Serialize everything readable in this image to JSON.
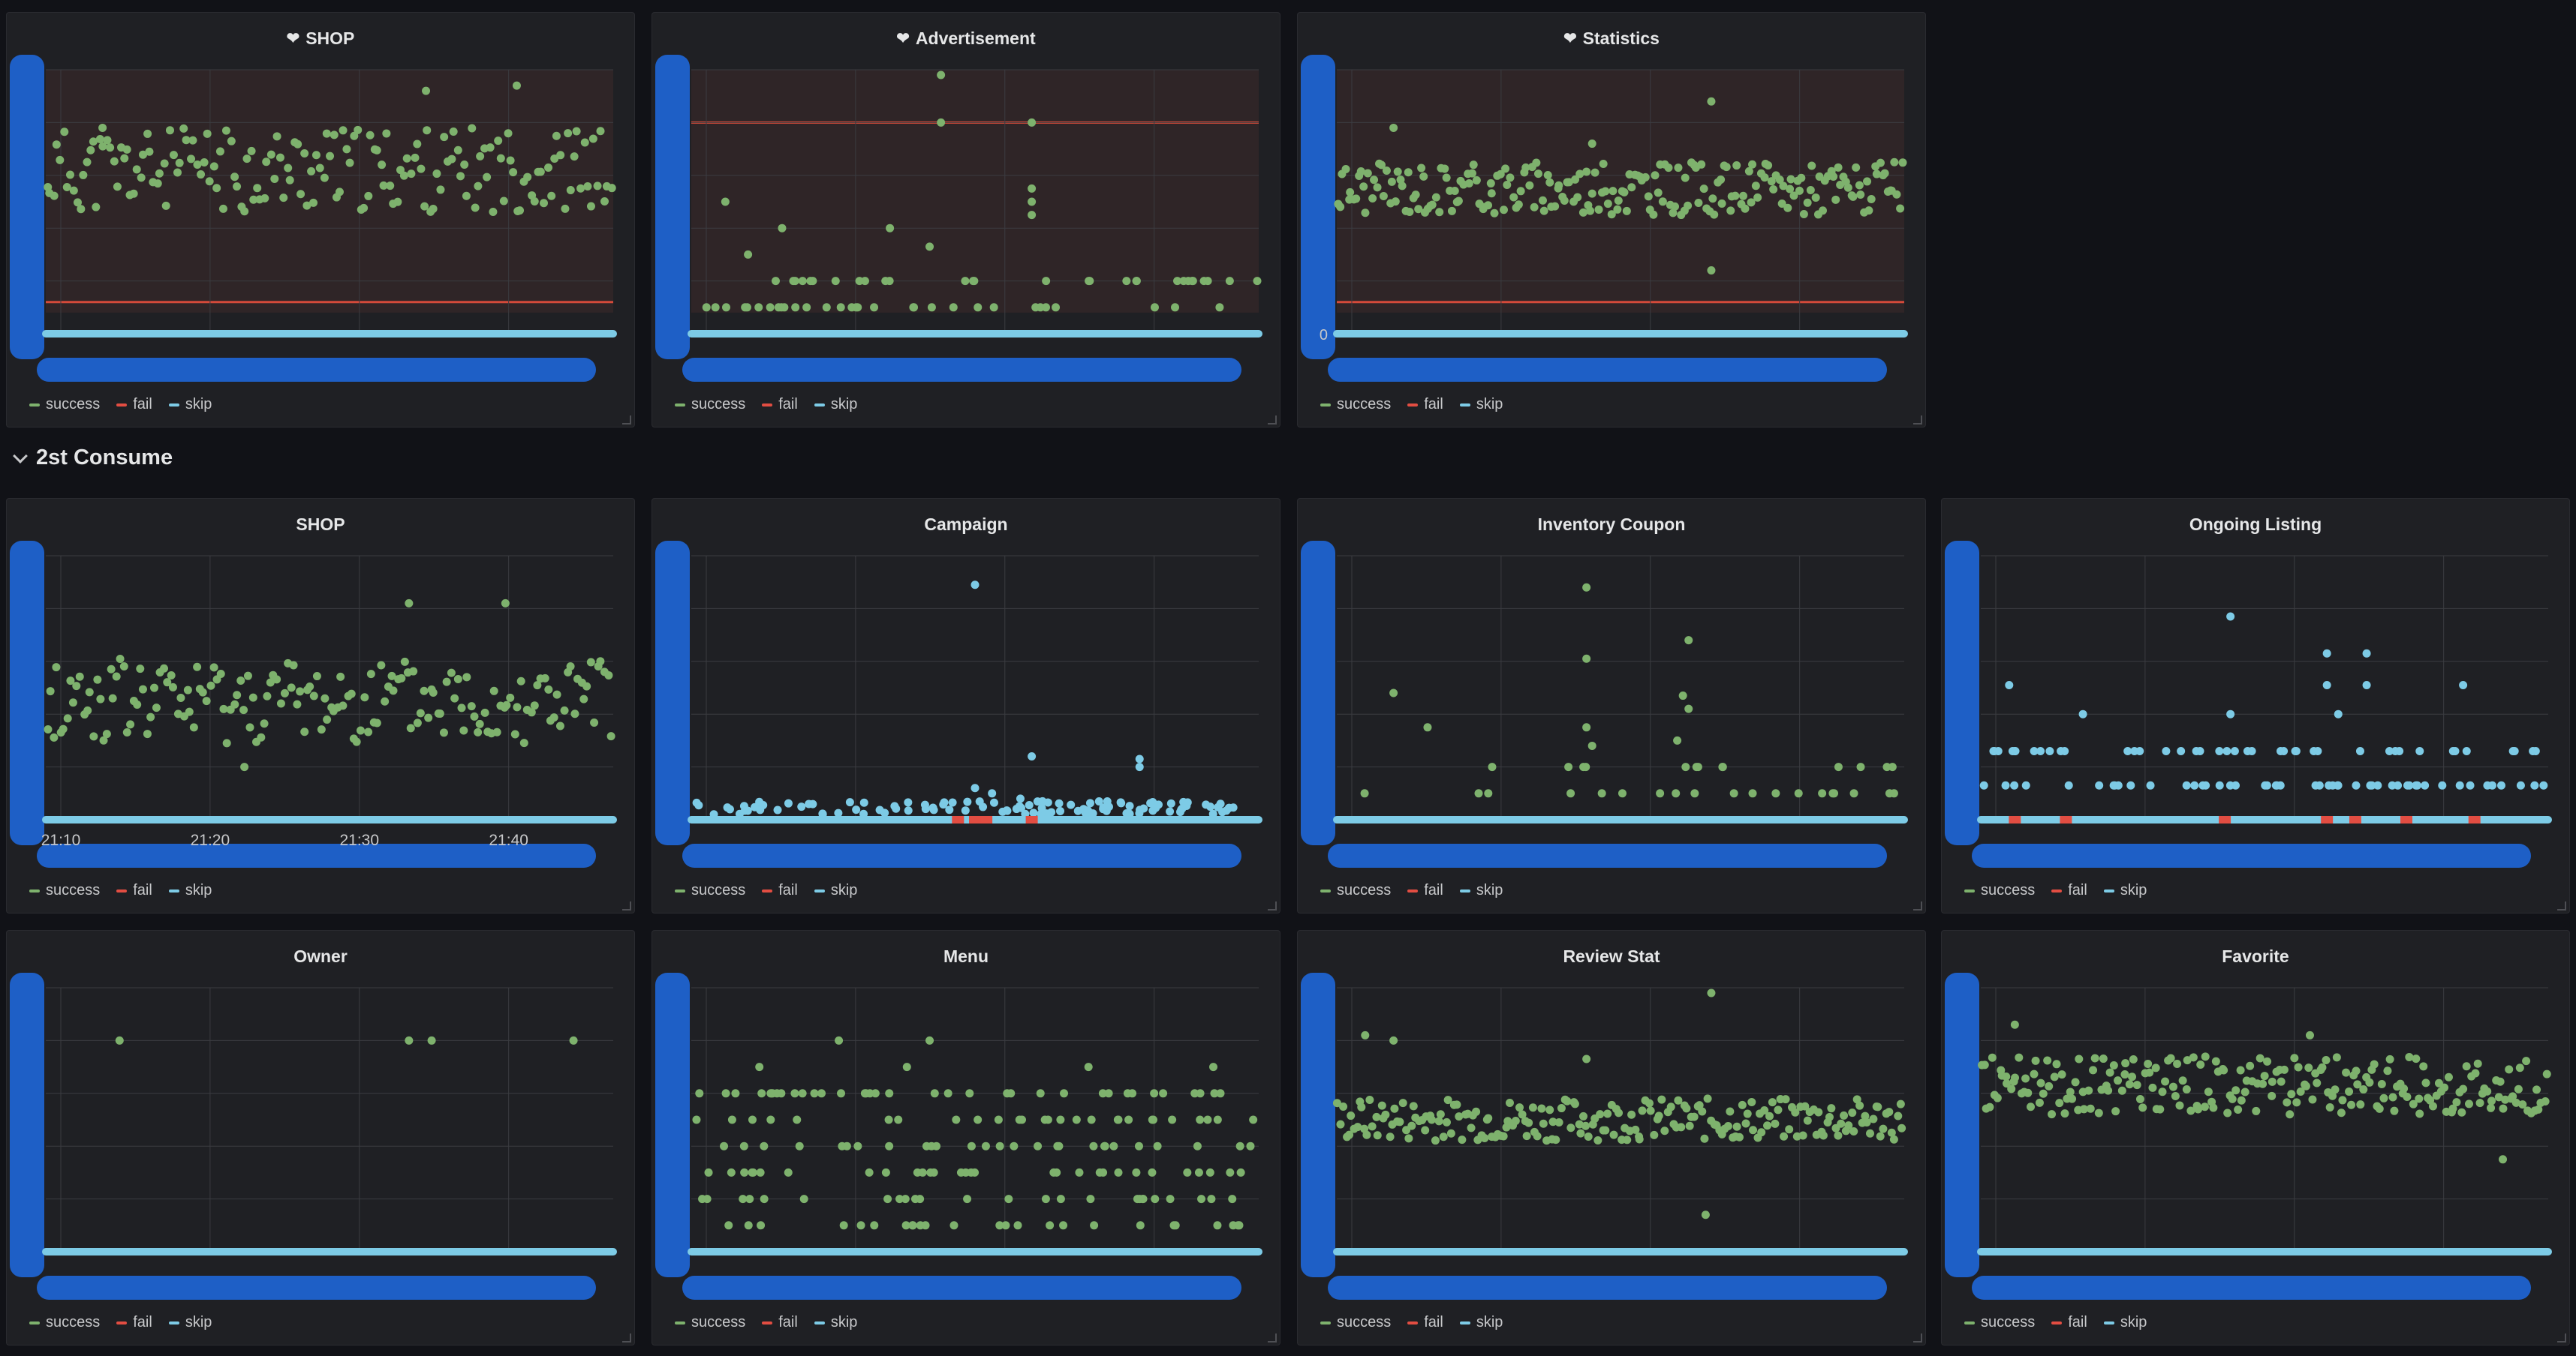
{
  "colors": {
    "success": "#7eb26d",
    "fail": "#e24d42",
    "skip": "#7dcbe6",
    "threshold_band": "#3a2a2a",
    "threshold_line": "#d44a3a",
    "grid": "#3b3c41",
    "drag_handle": "#1e5fc6"
  },
  "legend_labels": [
    "success",
    "fail",
    "skip"
  ],
  "section": {
    "title": "2st Consume"
  },
  "panels": [
    {
      "id": "p1",
      "title": "SHOP",
      "heart": true,
      "threshold": true,
      "x_ticks": [],
      "y_zero": "",
      "chart_data": {
        "type": "scatter",
        "series": [
          {
            "name": "success",
            "pattern": "band",
            "center": 0.62,
            "spread": 0.16,
            "n": 170,
            "seed": 11,
            "extras": [
              [
                0.67,
                0.92
              ],
              [
                0.83,
                0.94
              ],
              [
                0.1,
                0.78
              ]
            ]
          },
          {
            "name": "skip",
            "pattern": "baseline",
            "n": 0,
            "seed": 1
          }
        ]
      }
    },
    {
      "id": "p2",
      "title": "Advertisement",
      "heart": true,
      "threshold": true,
      "x_ticks": [],
      "y_zero": "",
      "chart_data": {
        "type": "scatter",
        "series": [
          {
            "name": "success",
            "pattern": "low",
            "n": 60,
            "seed": 21,
            "extras": [
              [
                0.44,
                0.98
              ],
              [
                0.44,
                0.8
              ],
              [
                0.6,
                0.8
              ],
              [
                0.06,
                0.5
              ],
              [
                0.16,
                0.4
              ],
              [
                0.35,
                0.4
              ],
              [
                0.6,
                0.55
              ],
              [
                0.6,
                0.5
              ],
              [
                0.6,
                0.45
              ],
              [
                0.1,
                0.3
              ],
              [
                0.42,
                0.33
              ]
            ]
          },
          {
            "name": "skip",
            "pattern": "baseline",
            "n": 0,
            "seed": 2
          }
        ]
      }
    },
    {
      "id": "p3",
      "title": "Statistics",
      "heart": true,
      "threshold": true,
      "x_ticks": [],
      "y_zero": "0",
      "chart_data": {
        "type": "scatter",
        "series": [
          {
            "name": "success",
            "pattern": "band",
            "center": 0.55,
            "spread": 0.1,
            "n": 220,
            "seed": 31,
            "extras": [
              [
                0.66,
                0.88
              ],
              [
                0.66,
                0.24
              ],
              [
                0.1,
                0.78
              ],
              [
                0.45,
                0.72
              ]
            ]
          },
          {
            "name": "skip",
            "pattern": "baseline",
            "n": 0,
            "seed": 3
          }
        ]
      }
    },
    {
      "id": "p4",
      "title": "SHOP",
      "heart": false,
      "threshold": false,
      "x_ticks": [
        "21:10",
        "21:20",
        "21:30",
        "21:40"
      ],
      "y_zero": "",
      "chart_data": {
        "type": "scatter",
        "series": [
          {
            "name": "success",
            "pattern": "band",
            "center": 0.45,
            "spread": 0.16,
            "n": 170,
            "seed": 41,
            "extras": [
              [
                0.64,
                0.82
              ],
              [
                0.81,
                0.82
              ],
              [
                0.35,
                0.2
              ]
            ]
          },
          {
            "name": "skip",
            "pattern": "baseline",
            "n": 0,
            "seed": 4
          }
        ]
      }
    },
    {
      "id": "p5",
      "title": "Campaign",
      "heart": false,
      "threshold": false,
      "x_ticks": [],
      "y_zero": "",
      "chart_data": {
        "type": "scatter",
        "series": [
          {
            "name": "skip",
            "pattern": "noise",
            "n": 110,
            "seed": 51,
            "extras": [
              [
                0.5,
                0.89
              ],
              [
                0.6,
                0.24
              ],
              [
                0.79,
                0.23
              ],
              [
                0.79,
                0.2
              ],
              [
                0.5,
                0.12
              ],
              [
                0.53,
                0.1
              ],
              [
                0.58,
                0.08
              ]
            ]
          },
          {
            "name": "fail",
            "pattern": "markers",
            "positions": [
              0.47,
              0.5,
              0.52,
              0.6
            ]
          }
        ]
      }
    },
    {
      "id": "p6",
      "title": "Inventory Coupon",
      "heart": false,
      "threshold": false,
      "x_ticks": [],
      "y_zero": "",
      "chart_data": {
        "type": "scatter",
        "series": [
          {
            "name": "success",
            "pattern": "low",
            "n": 32,
            "seed": 61,
            "extras": [
              [
                0.44,
                0.88
              ],
              [
                0.44,
                0.61
              ],
              [
                0.62,
                0.68
              ],
              [
                0.61,
                0.47
              ],
              [
                0.62,
                0.42
              ],
              [
                0.1,
                0.48
              ],
              [
                0.16,
                0.35
              ],
              [
                0.44,
                0.35
              ],
              [
                0.45,
                0.28
              ],
              [
                0.6,
                0.3
              ]
            ]
          },
          {
            "name": "skip",
            "pattern": "baseline",
            "n": 0,
            "seed": 6
          }
        ]
      }
    },
    {
      "id": "p7",
      "title": "Ongoing Listing",
      "heart": false,
      "threshold": false,
      "x_ticks": [],
      "y_zero": "",
      "chart_data": {
        "type": "scatter",
        "series": [
          {
            "name": "skip",
            "pattern": "levels",
            "levels": [
              0.13,
              0.26
            ],
            "n": 90,
            "seed": 71,
            "extras": [
              [
                0.44,
                0.77
              ],
              [
                0.61,
                0.63
              ],
              [
                0.68,
                0.63
              ],
              [
                0.05,
                0.51
              ],
              [
                0.44,
                0.4
              ],
              [
                0.61,
                0.51
              ],
              [
                0.63,
                0.4
              ],
              [
                0.68,
                0.51
              ],
              [
                0.85,
                0.51
              ],
              [
                0.18,
                0.4
              ]
            ]
          },
          {
            "name": "fail",
            "pattern": "markers",
            "positions": [
              0.06,
              0.15,
              0.43,
              0.61,
              0.66,
              0.75,
              0.87
            ]
          }
        ]
      }
    },
    {
      "id": "p8",
      "title": "Owner",
      "heart": false,
      "threshold": false,
      "x_ticks": [],
      "y_zero": "",
      "chart_data": {
        "type": "scatter",
        "series": [
          {
            "name": "success",
            "pattern": "none",
            "n": 0,
            "seed": 81,
            "extras": [
              [
                0.13,
                0.8
              ],
              [
                0.64,
                0.8
              ],
              [
                0.68,
                0.8
              ],
              [
                0.93,
                0.8
              ]
            ]
          },
          {
            "name": "skip",
            "pattern": "baseline",
            "n": 0,
            "seed": 8
          }
        ]
      }
    },
    {
      "id": "p9",
      "title": "Menu",
      "heart": false,
      "threshold": false,
      "x_ticks": [],
      "y_zero": "",
      "chart_data": {
        "type": "scatter",
        "series": [
          {
            "name": "success",
            "pattern": "levels",
            "levels": [
              0.1,
              0.2,
              0.3,
              0.4,
              0.5,
              0.6
            ],
            "n": 170,
            "seed": 91,
            "extras": [
              [
                0.26,
                0.8
              ],
              [
                0.42,
                0.8
              ],
              [
                0.12,
                0.7
              ],
              [
                0.92,
                0.7
              ],
              [
                0.38,
                0.7
              ],
              [
                0.7,
                0.7
              ]
            ]
          },
          {
            "name": "skip",
            "pattern": "baseline",
            "n": 0,
            "seed": 9
          }
        ]
      }
    },
    {
      "id": "p10",
      "title": "Review Stat",
      "heart": false,
      "threshold": false,
      "x_ticks": [],
      "y_zero": "",
      "chart_data": {
        "type": "scatter",
        "series": [
          {
            "name": "success",
            "pattern": "band",
            "center": 0.5,
            "spread": 0.08,
            "n": 210,
            "seed": 101,
            "extras": [
              [
                0.66,
                0.98
              ],
              [
                0.1,
                0.8
              ],
              [
                0.44,
                0.73
              ],
              [
                0.65,
                0.14
              ],
              [
                0.05,
                0.82
              ]
            ]
          },
          {
            "name": "skip",
            "pattern": "baseline",
            "n": 0,
            "seed": 10
          }
        ]
      }
    },
    {
      "id": "p11",
      "title": "Favorite",
      "heart": false,
      "threshold": false,
      "x_ticks": [],
      "y_zero": "",
      "chart_data": {
        "type": "scatter",
        "series": [
          {
            "name": "success",
            "pattern": "band",
            "center": 0.63,
            "spread": 0.11,
            "n": 220,
            "seed": 111,
            "extras": [
              [
                0.06,
                0.86
              ],
              [
                0.58,
                0.82
              ],
              [
                0.92,
                0.35
              ]
            ]
          },
          {
            "name": "skip",
            "pattern": "baseline",
            "n": 0,
            "seed": 11
          }
        ]
      }
    }
  ]
}
